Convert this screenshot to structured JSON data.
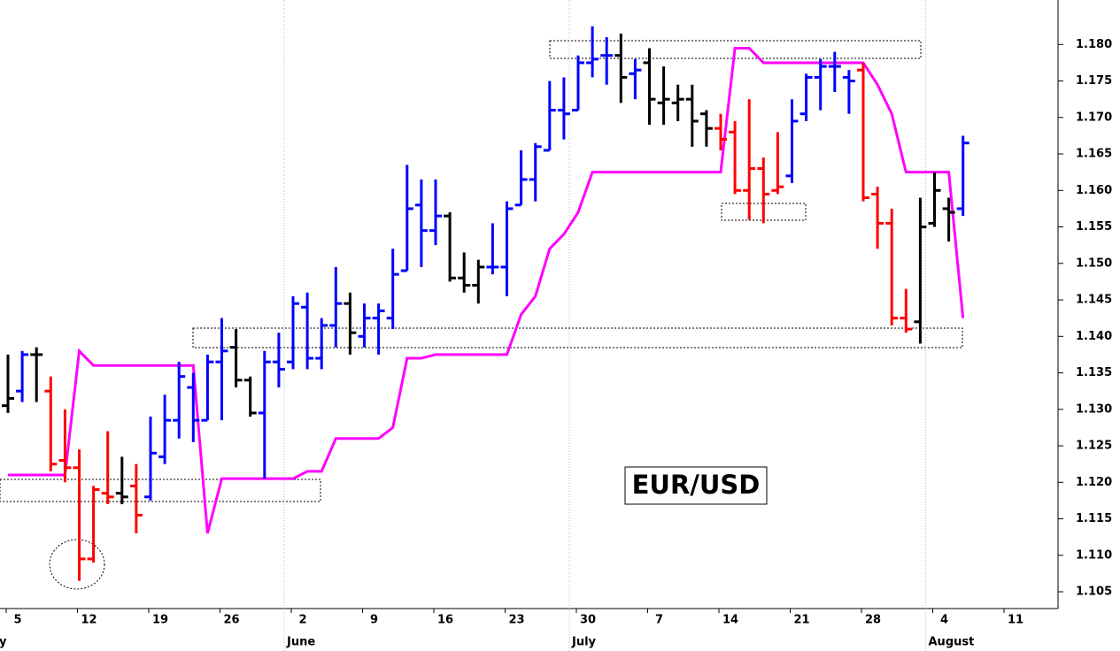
{
  "chart_data": {
    "type": "ohlc",
    "annotation": "EUR/USD",
    "categories": [
      "5",
      null,
      null,
      null,
      null,
      "12",
      null,
      null,
      null,
      null,
      "19",
      null,
      null,
      null,
      null,
      "26",
      null,
      null,
      null,
      null,
      "2",
      null,
      null,
      null,
      null,
      "9",
      null,
      null,
      null,
      null,
      "16",
      null,
      null,
      null,
      null,
      "23",
      null,
      null,
      null,
      null,
      "30",
      null,
      null,
      null,
      null,
      "7",
      null,
      null,
      null,
      null,
      "14",
      null,
      null,
      null,
      null,
      "21",
      null,
      null,
      null,
      null,
      "28",
      null,
      null,
      null,
      null,
      "4",
      null,
      null,
      null,
      null,
      "11",
      null,
      null,
      null
    ],
    "month_labels": [
      "y",
      null,
      null,
      null,
      null,
      null,
      null,
      null,
      null,
      null,
      null,
      null,
      null,
      null,
      null,
      null,
      null,
      null,
      null,
      null,
      "June",
      null,
      null,
      null,
      null,
      null,
      null,
      null,
      null,
      null,
      null,
      null,
      null,
      null,
      null,
      null,
      null,
      null,
      null,
      null,
      "July",
      null,
      null,
      null,
      null,
      null,
      null,
      null,
      null,
      null,
      null,
      null,
      null,
      null,
      null,
      null,
      null,
      null,
      null,
      null,
      null,
      null,
      null,
      null,
      null,
      "August",
      null,
      null,
      null,
      null,
      null,
      null,
      null,
      null
    ],
    "open": [
      1.1305,
      1.1325,
      1.1375,
      1.1325,
      1.123,
      1.122,
      1.1095,
      1.1185,
      1.1185,
      1.1195,
      1.118,
      1.1235,
      1.1285,
      1.133,
      1.1285,
      1.1365,
      1.1385,
      1.134,
      1.1295,
      1.1365,
      1.1365,
      1.144,
      1.137,
      1.1415,
      1.1445,
      1.14,
      1.1425,
      1.1425,
      1.149,
      1.158,
      1.1545,
      1.1565,
      1.148,
      1.147,
      1.1495,
      1.1495,
      1.158,
      1.1615,
      1.1655,
      1.171,
      1.171,
      1.1775,
      1.1785,
      1.1785,
      1.176,
      1.1775,
      1.172,
      1.172,
      1.1725,
      1.1705,
      1.1685,
      1.168,
      1.16,
      1.163,
      1.16,
      1.162,
      1.1705,
      1.1755,
      1.177,
      1.1755,
      1.1765,
      1.1595,
      1.1555,
      1.1425,
      1.142,
      1.1555,
      1.1575,
      1.1575,
      null,
      null,
      null,
      null,
      null,
      null
    ],
    "high": [
      1.1375,
      1.138,
      1.1385,
      1.1345,
      1.13,
      1.1245,
      1.1195,
      1.127,
      1.1235,
      1.1225,
      1.129,
      1.132,
      1.1365,
      1.135,
      1.1375,
      1.1425,
      1.141,
      1.1345,
      1.138,
      1.1405,
      1.1455,
      1.146,
      1.1425,
      1.1495,
      1.146,
      1.1445,
      1.1445,
      1.152,
      1.1635,
      1.1615,
      1.1615,
      1.157,
      1.1515,
      1.1505,
      1.1555,
      1.1585,
      1.1655,
      1.1665,
      1.175,
      1.1755,
      1.1785,
      1.1825,
      1.181,
      1.1815,
      1.178,
      1.1795,
      1.177,
      1.1745,
      1.1745,
      1.171,
      1.1705,
      1.1695,
      1.1725,
      1.1645,
      1.168,
      1.1725,
      1.176,
      1.178,
      1.179,
      1.1765,
      1.1775,
      1.1605,
      1.1575,
      1.1465,
      1.159,
      1.1625,
      1.159,
      1.1675,
      null,
      null,
      null,
      null,
      null,
      null
    ],
    "low": [
      1.1295,
      1.131,
      1.131,
      1.1215,
      1.12,
      1.1065,
      1.109,
      1.117,
      1.117,
      1.113,
      1.1175,
      1.1225,
      1.126,
      1.1255,
      1.1285,
      1.1285,
      1.133,
      1.129,
      1.1205,
      1.133,
      1.1355,
      1.1355,
      1.1355,
      1.1385,
      1.1375,
      1.1385,
      1.1375,
      1.141,
      1.149,
      1.1495,
      1.1525,
      1.1475,
      1.146,
      1.1445,
      1.1485,
      1.1455,
      1.158,
      1.1585,
      1.1655,
      1.167,
      1.171,
      1.1755,
      1.1745,
      1.172,
      1.1725,
      1.169,
      1.169,
      1.1695,
      1.166,
      1.166,
      1.1655,
      1.1595,
      1.156,
      1.1555,
      1.1595,
      1.161,
      1.1695,
      1.171,
      1.1735,
      1.1705,
      1.1585,
      1.152,
      1.1415,
      1.1405,
      1.139,
      1.155,
      1.153,
      1.1565,
      null,
      null,
      null,
      null,
      null,
      null
    ],
    "close": [
      1.1315,
      1.1375,
      1.1375,
      1.1225,
      1.122,
      1.1095,
      1.119,
      1.118,
      1.118,
      1.1155,
      1.124,
      1.1285,
      1.1345,
      1.1285,
      1.1365,
      1.138,
      1.134,
      1.1295,
      1.1365,
      1.1355,
      1.1445,
      1.137,
      1.1415,
      1.1445,
      1.1405,
      1.1425,
      1.1435,
      1.1485,
      1.1575,
      1.1545,
      1.1565,
      1.148,
      1.147,
      1.1495,
      1.1495,
      1.1575,
      1.1615,
      1.166,
      1.171,
      1.1705,
      1.1775,
      1.178,
      1.1785,
      1.1755,
      1.1765,
      1.1725,
      1.1725,
      1.1725,
      1.1695,
      1.1685,
      1.167,
      1.16,
      1.163,
      1.1595,
      1.1605,
      1.1695,
      1.1755,
      1.177,
      1.177,
      1.175,
      1.159,
      1.1555,
      1.1425,
      1.141,
      1.155,
      1.16,
      1.157,
      1.1665,
      null,
      null,
      null,
      null,
      null,
      null
    ],
    "colors": [
      "#000000",
      "#0000ff",
      "#000000",
      "#ff0000",
      "#ff0000",
      "#ff0000",
      "#ff0000",
      "#ff0000",
      "#000000",
      "#ff0000",
      "#0000ff",
      "#0000ff",
      "#0000ff",
      "#0000ff",
      "#0000ff",
      "#0000ff",
      "#000000",
      "#000000",
      "#0000ff",
      "#0000ff",
      "#0000ff",
      "#0000ff",
      "#0000ff",
      "#0000ff",
      "#000000",
      "#0000ff",
      "#0000ff",
      "#0000ff",
      "#0000ff",
      "#0000ff",
      "#0000ff",
      "#000000",
      "#000000",
      "#000000",
      "#0000ff",
      "#0000ff",
      "#0000ff",
      "#0000ff",
      "#0000ff",
      "#0000ff",
      "#0000ff",
      "#0000ff",
      "#0000ff",
      "#000000",
      "#0000ff",
      "#000000",
      "#000000",
      "#000000",
      "#000000",
      "#000000",
      "#ff0000",
      "#ff0000",
      "#ff0000",
      "#ff0000",
      "#ff0000",
      "#0000ff",
      "#0000ff",
      "#0000ff",
      "#0000ff",
      "#0000ff",
      "#ff0000",
      "#ff0000",
      "#ff0000",
      "#ff0000",
      "#000000",
      "#000000",
      "#000000",
      "#0000ff",
      null,
      null,
      null,
      null,
      null,
      null
    ],
    "stop_line": {
      "color": "#ff00ff",
      "values": [
        1.121,
        1.121,
        1.121,
        1.121,
        1.121,
        1.138,
        1.136,
        1.136,
        1.136,
        1.136,
        1.136,
        1.136,
        1.136,
        1.136,
        1.113,
        1.1205,
        1.1205,
        1.1205,
        1.1205,
        1.1205,
        1.1205,
        1.1215,
        1.1215,
        1.126,
        1.126,
        1.126,
        1.126,
        1.1275,
        1.137,
        1.137,
        1.1375,
        1.1375,
        1.1375,
        1.1375,
        1.1375,
        1.1375,
        1.143,
        1.1455,
        1.152,
        1.154,
        1.157,
        1.1625,
        1.1625,
        1.1625,
        1.1625,
        1.1625,
        1.1625,
        1.1625,
        1.1625,
        1.1625,
        1.1625,
        1.1795,
        1.1795,
        1.1775,
        1.1775,
        1.1775,
        1.1775,
        1.1775,
        1.1775,
        1.1775,
        1.1775,
        1.1745,
        1.1705,
        1.1625,
        1.1625,
        1.1625,
        1.1625,
        1.1425,
        null,
        null,
        null,
        null,
        null,
        null
      ]
    },
    "ylim": [
      1.1027,
      1.1861
    ],
    "yticks": [
      1.105,
      {
        "value": 1.11,
        "label": "1.110"
      },
      1.115,
      {
        "value": 1.12,
        "label": "1.120"
      },
      1.125,
      {
        "value": 1.13,
        "label": "1.130"
      },
      1.135,
      {
        "value": 1.14,
        "label": "1.140"
      },
      1.145,
      {
        "value": 1.15,
        "label": "1.150"
      },
      1.155,
      {
        "value": 1.16,
        "label": "1.160"
      },
      1.165,
      {
        "value": 1.17,
        "label": "1.170"
      },
      1.175,
      {
        "value": 1.18,
        "label": "1.180"
      }
    ],
    "y_axis_side": "right"
  }
}
